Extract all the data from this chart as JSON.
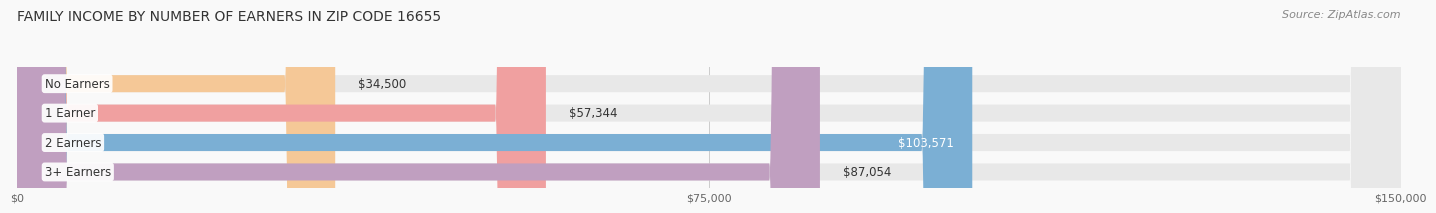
{
  "title": "FAMILY INCOME BY NUMBER OF EARNERS IN ZIP CODE 16655",
  "source": "Source: ZipAtlas.com",
  "categories": [
    "No Earners",
    "1 Earner",
    "2 Earners",
    "3+ Earners"
  ],
  "values": [
    34500,
    57344,
    103571,
    87054
  ],
  "bar_colors": [
    "#f5c897",
    "#f0a0a0",
    "#7bafd4",
    "#c09fc0"
  ],
  "bar_bg_color": "#e8e8e8",
  "value_labels": [
    "$34,500",
    "$57,344",
    "$103,571",
    "$87,054"
  ],
  "value_label_white": [
    false,
    false,
    true,
    false
  ],
  "x_max": 150000,
  "x_tick_labels": [
    "$0",
    "$75,000",
    "$150,000"
  ],
  "x_ticks": [
    0,
    75000,
    150000
  ],
  "background_color": "#f9f9f9",
  "title_fontsize": 10,
  "source_fontsize": 8,
  "label_fontsize": 8.5,
  "value_fontsize": 8.5
}
